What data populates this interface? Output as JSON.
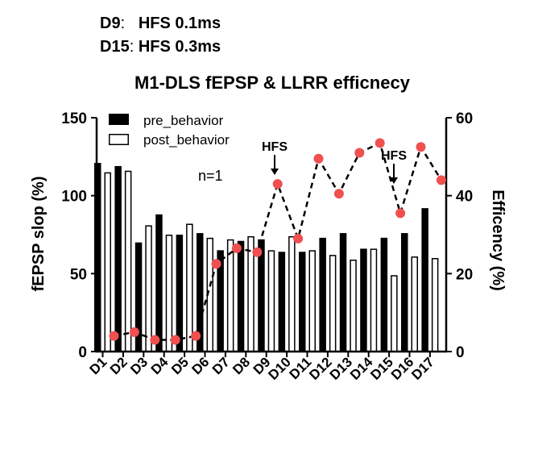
{
  "header": {
    "line1_label": "D9",
    "line1_sep": ":",
    "line1_value": "HFS 0.1ms",
    "line2_label": "D15",
    "line2_sep": ":",
    "line2_value": "HFS 0.3ms"
  },
  "chart_data": {
    "type": "bar",
    "title": "M1-DLS fEPSP & LLRR efficnecy",
    "ylabel": "fEPSP slop (%)",
    "y2label": "Efficency (%)",
    "ylim": [
      0,
      150
    ],
    "y2lim": [
      0,
      60
    ],
    "yticks": [
      0,
      50,
      100,
      150
    ],
    "y2ticks": [
      0,
      20,
      40,
      60
    ],
    "categories": [
      "D1",
      "D2",
      "D3",
      "D4",
      "D5",
      "D6",
      "D7",
      "D8",
      "D9",
      "D10",
      "D11",
      "D12",
      "D13",
      "D14",
      "D15",
      "D16",
      "D17"
    ],
    "series": [
      {
        "name": "pre_behavior",
        "style": "filled",
        "color": "#000000",
        "values": [
          121,
          119,
          70,
          88,
          75,
          76,
          65,
          71,
          72,
          64,
          64,
          73,
          76,
          66,
          73,
          76,
          92
        ]
      },
      {
        "name": "post_behavior",
        "style": "open",
        "color": "#000000",
        "values": [
          115,
          116,
          81,
          75,
          82,
          73,
          72,
          74,
          65,
          74,
          65,
          62,
          59,
          66,
          49,
          61,
          60
        ]
      }
    ],
    "line_series": {
      "name": "efficiency",
      "axis": "right",
      "color": "#f05050",
      "dashed": true,
      "values": [
        4,
        5,
        3,
        3,
        4,
        22.5,
        26.5,
        25.5,
        43,
        29,
        49.5,
        40.5,
        51,
        53.5,
        35.5,
        52.5,
        44
      ]
    },
    "annotations": [
      {
        "text": "n=1"
      },
      {
        "text": "HFS",
        "category": "D9"
      },
      {
        "text": "HFS",
        "category": "D15"
      }
    ],
    "legend": {
      "position": "top-left"
    },
    "grid": false
  }
}
